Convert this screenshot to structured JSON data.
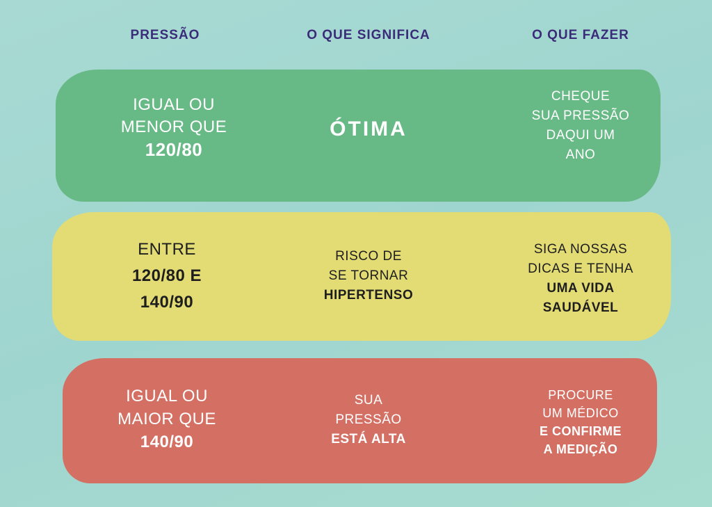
{
  "colors": {
    "header_text": "#3b2c7a",
    "green": "#67b986",
    "yellow": "#e3dc74",
    "red": "#d36f63",
    "light_text": "#ffffff",
    "dark_text": "#1e1e1e"
  },
  "headers": {
    "pressure": "PRESSÃO",
    "meaning": "O QUE SIGNIFICA",
    "action": "O QUE FAZER"
  },
  "rows": [
    {
      "level": "green",
      "pressure": [
        "IGUAL OU",
        "MENOR QUE",
        "120/80"
      ],
      "meaning": [
        "ÓTIMA"
      ],
      "action": [
        "CHEQUE",
        "SUA PRESSÃO",
        "DAQUI UM",
        "ANO"
      ]
    },
    {
      "level": "yellow",
      "pressure": [
        "ENTRE",
        "120/80 E",
        "140/90"
      ],
      "meaning": [
        "RISCO DE",
        "SE TORNAR",
        "HIPERTENSO"
      ],
      "action": [
        "SIGA NOSSAS",
        "DICAS E TENHA",
        "UMA VIDA",
        "SAUDÁVEL"
      ]
    },
    {
      "level": "red",
      "pressure": [
        "IGUAL OU",
        "MAIOR QUE",
        "140/90"
      ],
      "meaning": [
        "SUA",
        "PRESSÃO",
        "ESTÁ ALTA"
      ],
      "action": [
        "PROCURE",
        "UM MÉDICO",
        "E CONFIRME",
        "A MEDIÇÃO"
      ]
    }
  ]
}
